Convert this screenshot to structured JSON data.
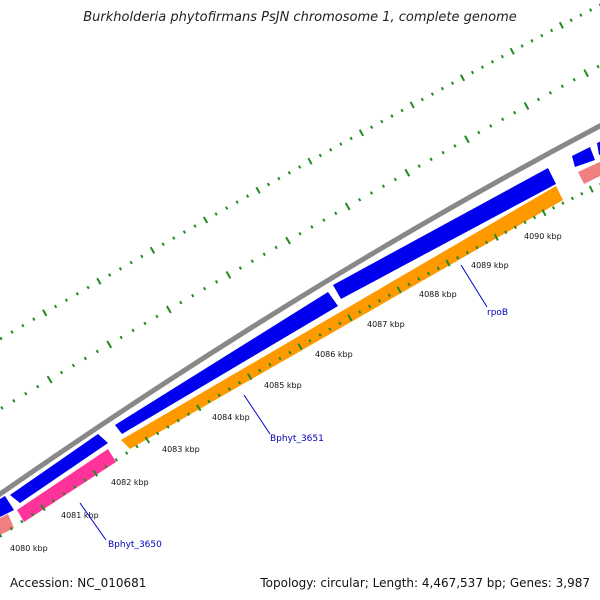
{
  "title": "Burkholderia phytofirmans PsJN chromosome 1, complete genome",
  "footer": {
    "accession": "Accession: NC_010681",
    "topology": "Topology: circular; Length: 4,467,537 bp; Genes: 3,987"
  },
  "colors": {
    "backbone": "#888888",
    "forward_gene": "#0000ee",
    "reverse_gene_orange": "#ff9900",
    "reverse_gene_pink": "#ff3399",
    "reverse_gene_salmon": "#f08080",
    "tick": "#228b22",
    "label_line": "#0000cc"
  },
  "tick_labels": [
    "4080 kbp",
    "4081 kbp",
    "4082 kbp",
    "4083 kbp",
    "4084 kbp",
    "4085 kbp",
    "4086 kbp",
    "4087 kbp",
    "4088 kbp",
    "4089 kbp",
    "4090 kbp"
  ],
  "gene_labels": [
    "Bphyt_3650",
    "Bphyt_3651",
    "rpoB"
  ]
}
